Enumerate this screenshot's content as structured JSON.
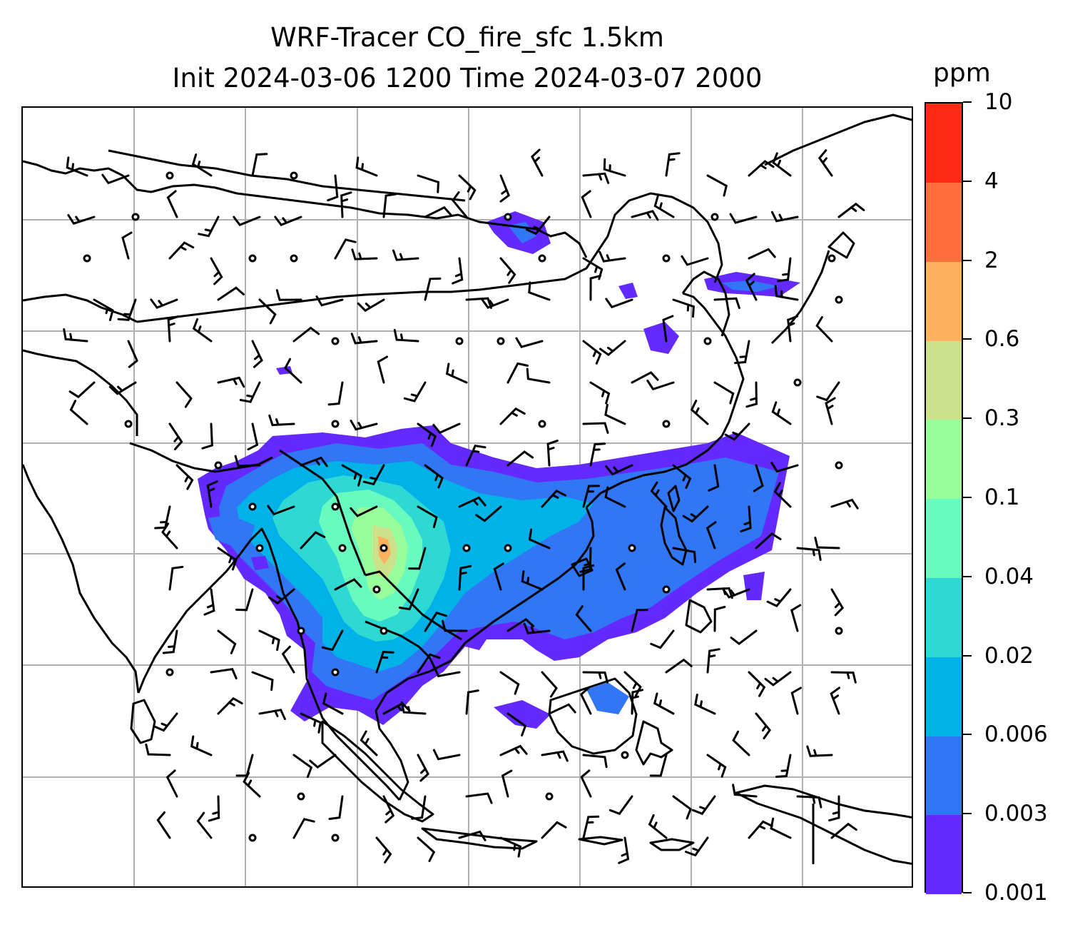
{
  "title": {
    "line1": "WRF-Tracer CO_fire_sfc 1.5km",
    "line2": "Init 2024-03-06 1200 Time 2024-03-07 2000"
  },
  "colorbar": {
    "title": "ppm",
    "levels": [
      "0.001",
      "0.003",
      "0.006",
      "0.02",
      "0.04",
      "0.1",
      "0.3",
      "0.6",
      "2",
      "4",
      "10"
    ],
    "colors": [
      "#6329ff",
      "#3076f5",
      "#00b2e8",
      "#2ed9d3",
      "#67fbc0",
      "#98fd9b",
      "#cde08a",
      "#ffb15e",
      "#ff6e3d",
      "#ff2a16"
    ]
  },
  "map": {
    "variable": "CO_fire_sfc",
    "gridlines": true,
    "coastline_color": "#000000",
    "gridline_color": "#b0b0b0"
  }
}
